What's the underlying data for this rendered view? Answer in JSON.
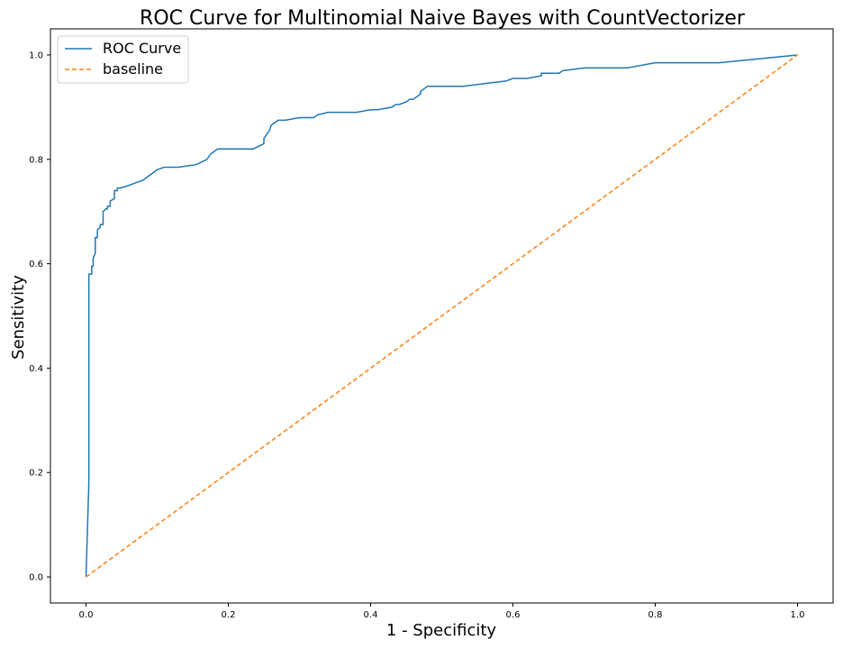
{
  "chart_data": {
    "type": "line",
    "title": "ROC Curve for Multinomial Naive Bayes with CountVectorizer",
    "xlabel": "1 - Specificity",
    "ylabel": "Sensitivity",
    "xlim": [
      -0.05,
      1.05
    ],
    "ylim": [
      -0.05,
      1.05
    ],
    "xticks": [
      "0.0",
      "0.2",
      "0.4",
      "0.6",
      "0.8",
      "1.0"
    ],
    "yticks": [
      "0.0",
      "0.2",
      "0.4",
      "0.6",
      "0.8",
      "1.0"
    ],
    "grid": false,
    "legend_position": "top-left",
    "series": [
      {
        "name": "ROC Curve",
        "color": "#1f77b4",
        "style": "solid",
        "x": [
          0.0,
          0.004,
          0.004,
          0.008,
          0.008,
          0.01,
          0.01,
          0.013,
          0.013,
          0.016,
          0.016,
          0.02,
          0.02,
          0.024,
          0.024,
          0.028,
          0.03,
          0.03,
          0.034,
          0.034,
          0.04,
          0.04,
          0.044,
          0.044,
          0.048,
          0.048,
          0.06,
          0.06,
          0.07,
          0.08,
          0.085,
          0.09,
          0.095,
          0.1,
          0.1,
          0.11,
          0.12,
          0.13,
          0.155,
          0.155,
          0.17,
          0.175,
          0.18,
          0.185,
          0.235,
          0.25,
          0.25,
          0.255,
          0.258,
          0.26,
          0.265,
          0.27,
          0.28,
          0.3,
          0.32,
          0.325,
          0.34,
          0.37,
          0.38,
          0.4,
          0.41,
          0.43,
          0.435,
          0.44,
          0.45,
          0.455,
          0.46,
          0.47,
          0.47,
          0.48,
          0.5,
          0.53,
          0.56,
          0.59,
          0.59,
          0.6,
          0.62,
          0.64,
          0.64,
          0.665,
          0.67,
          0.7,
          0.76,
          0.8,
          0.89,
          1.0
        ],
        "y": [
          0.0,
          0.18,
          0.58,
          0.58,
          0.595,
          0.595,
          0.61,
          0.62,
          0.65,
          0.65,
          0.665,
          0.67,
          0.675,
          0.675,
          0.7,
          0.705,
          0.705,
          0.71,
          0.71,
          0.72,
          0.725,
          0.74,
          0.74,
          0.745,
          0.745,
          0.745,
          0.75,
          0.75,
          0.755,
          0.76,
          0.765,
          0.77,
          0.775,
          0.78,
          0.78,
          0.785,
          0.785,
          0.785,
          0.79,
          0.79,
          0.8,
          0.81,
          0.815,
          0.82,
          0.82,
          0.83,
          0.84,
          0.85,
          0.855,
          0.865,
          0.87,
          0.875,
          0.875,
          0.88,
          0.88,
          0.885,
          0.89,
          0.89,
          0.89,
          0.895,
          0.895,
          0.9,
          0.905,
          0.905,
          0.91,
          0.915,
          0.915,
          0.925,
          0.93,
          0.94,
          0.94,
          0.94,
          0.945,
          0.95,
          0.95,
          0.955,
          0.955,
          0.96,
          0.965,
          0.965,
          0.97,
          0.975,
          0.975,
          0.985,
          0.985,
          1.0
        ]
      },
      {
        "name": "baseline",
        "color": "#ff7f0e",
        "style": "dashed",
        "x": [
          0.0,
          1.0
        ],
        "y": [
          0.0,
          1.0
        ]
      }
    ]
  }
}
